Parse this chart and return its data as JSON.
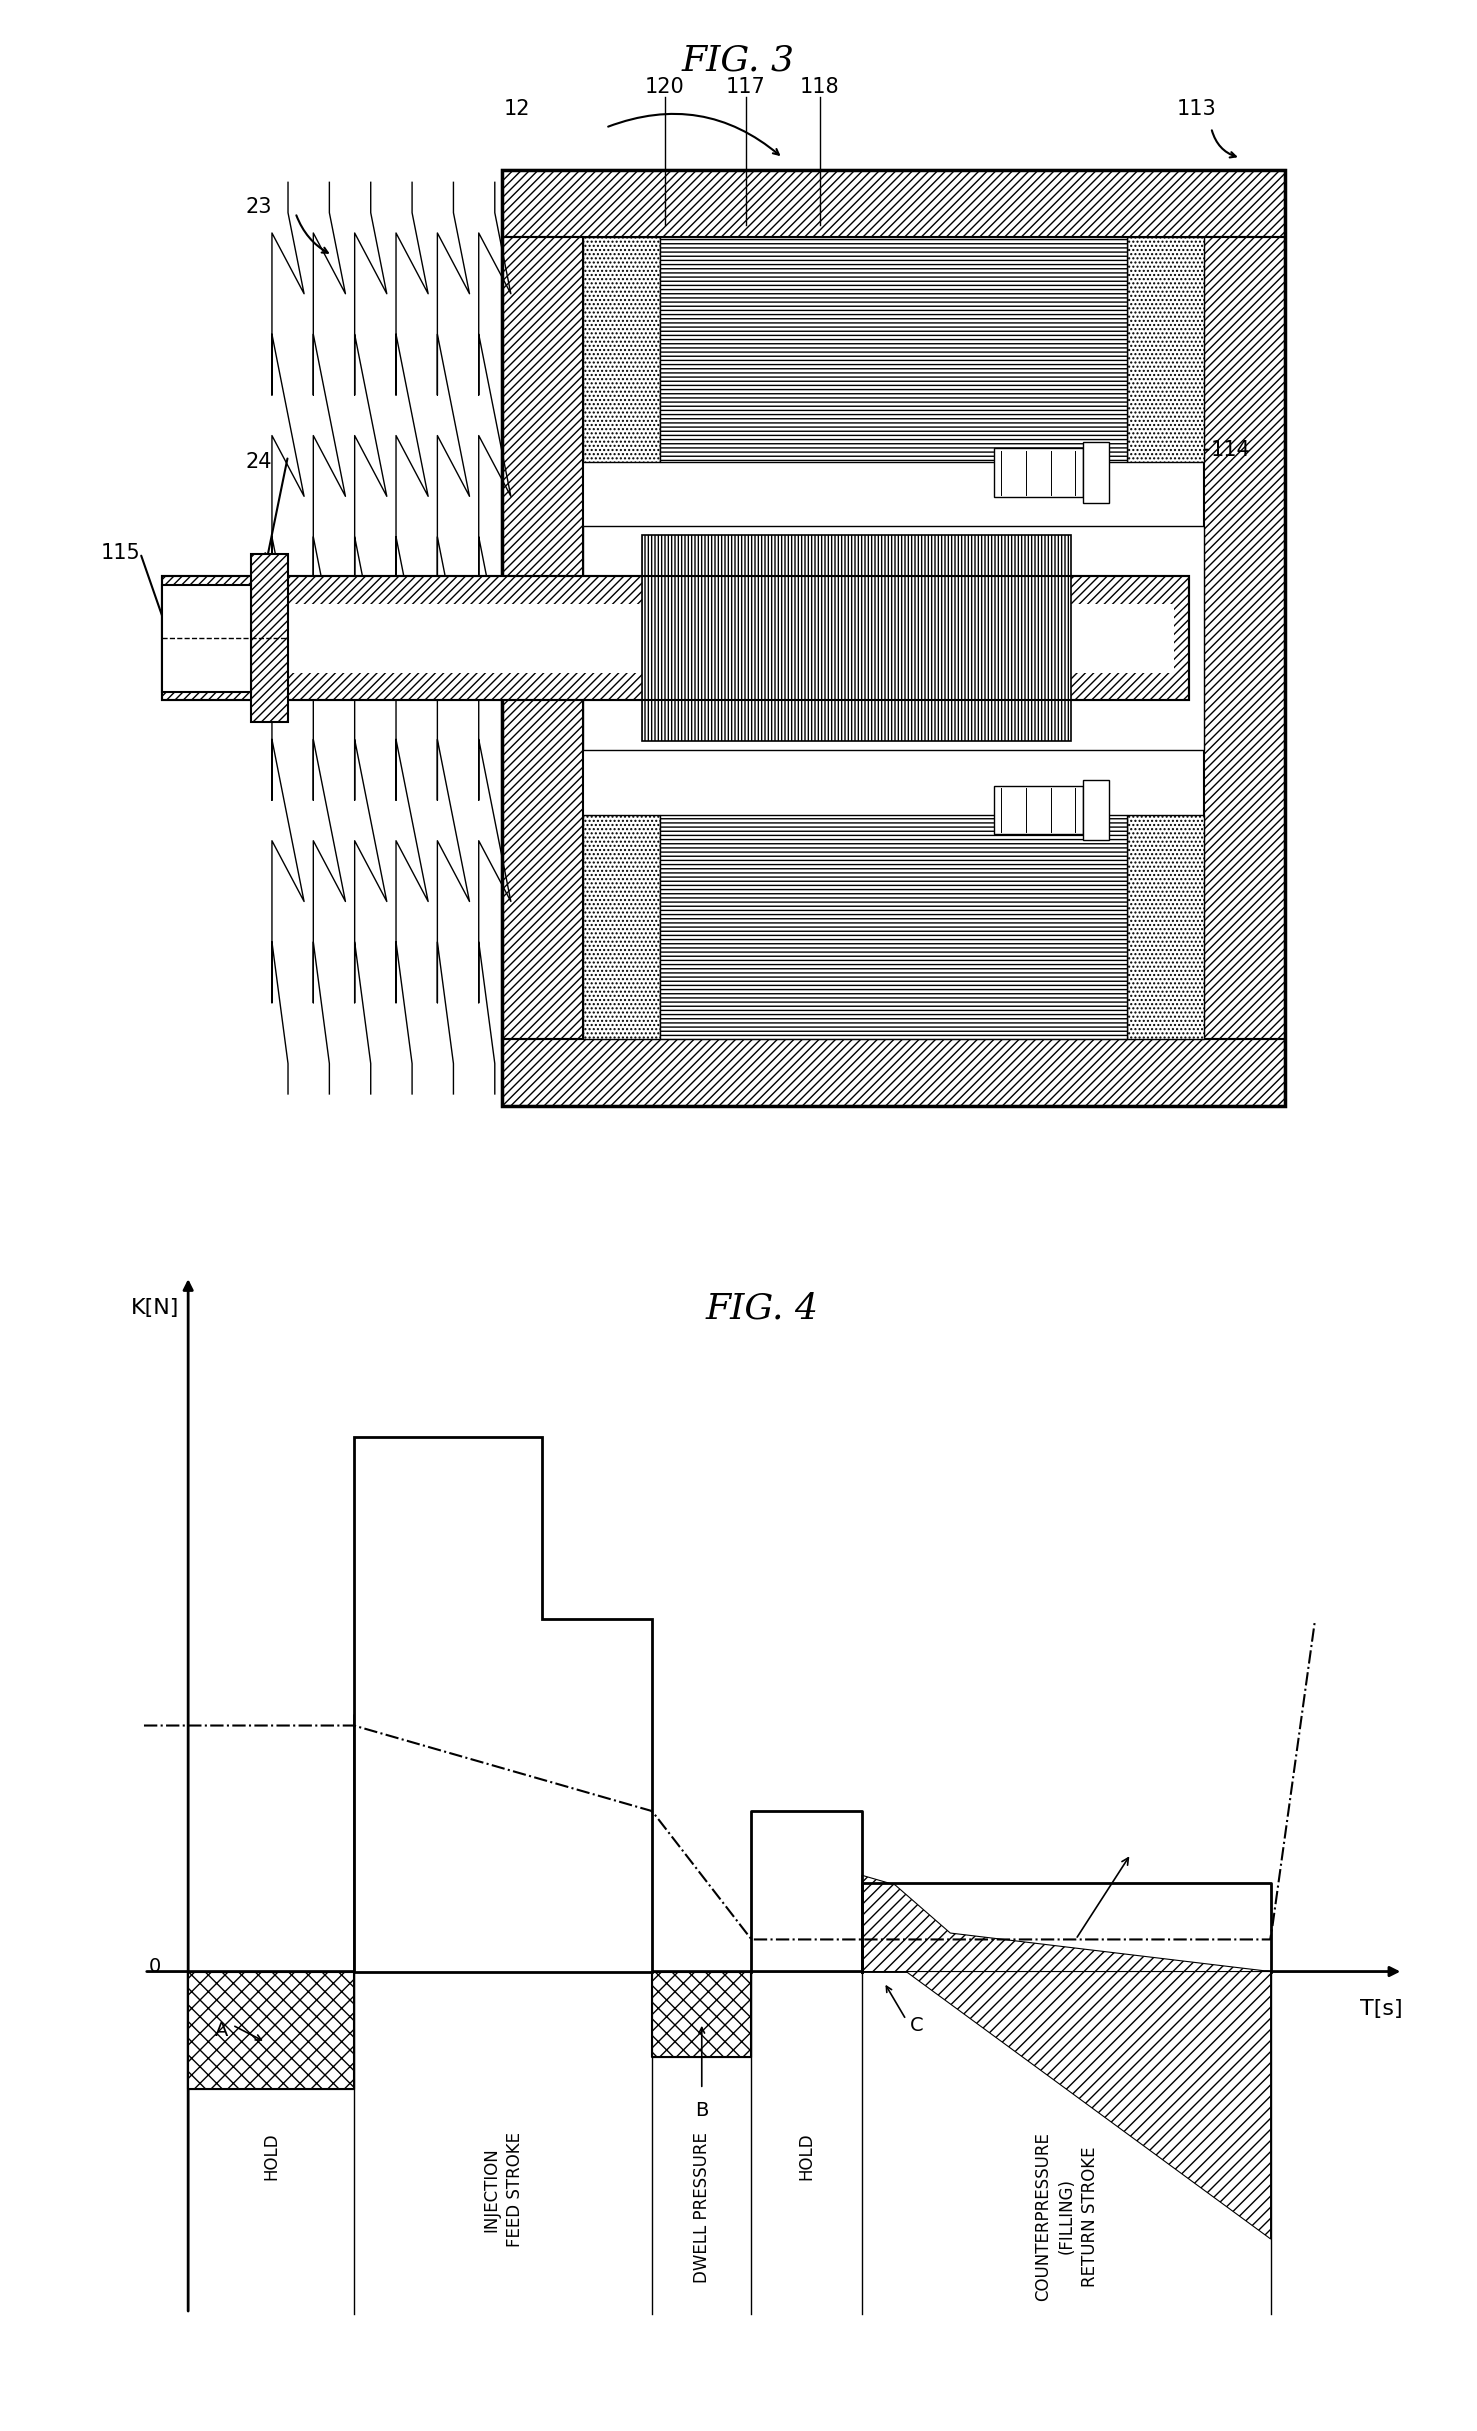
{
  "fig3_title": "FIG. 3",
  "fig4_title": "FIG. 4",
  "background_color": "#ffffff",
  "fig4_ylabel": "K[N]",
  "fig4_xlabel": "T[s]",
  "phase_labels": [
    "HOLD",
    "INJECTION\nFEED STROKE",
    "DWELL PRESSURE",
    "HOLD",
    "COUNTERPRESSURE\n(FILLING)\nRETURN STROKE"
  ]
}
